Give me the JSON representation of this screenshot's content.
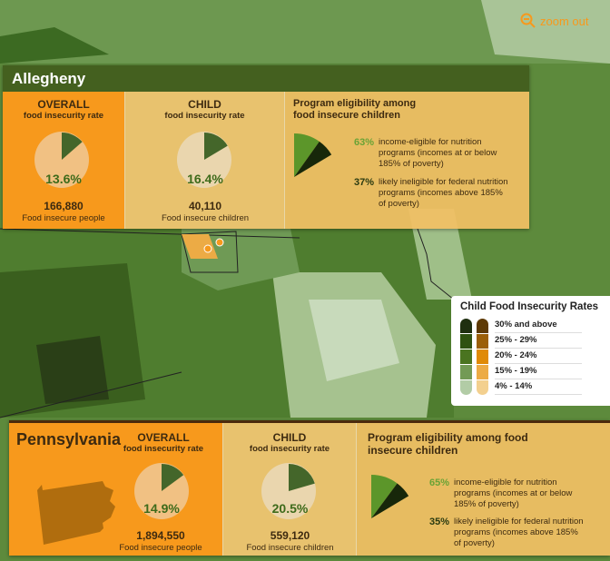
{
  "zoom_out_label": "zoom out",
  "county": {
    "name": "Allegheny",
    "overall": {
      "title": "OVERALL",
      "subtitle": "food insecurity rate",
      "rate_label": "13.6%",
      "rate": 13.6,
      "count": "166,880",
      "count_label": "Food insecure people"
    },
    "child": {
      "title": "CHILD",
      "subtitle": "food insecurity rate",
      "rate_label": "16.4%",
      "rate": 16.4,
      "count": "40,110",
      "count_label": "Food insecure children"
    },
    "program": {
      "title_line1": "Program eligibility among",
      "title_line2": "food insecure children",
      "eligible_pct": "63%",
      "eligible_value": 63,
      "eligible_line1": "income-eligible for nutrition",
      "eligible_line2": "programs (incomes at or below",
      "eligible_line3": "185% of poverty)",
      "ineligible_pct": "37%",
      "ineligible_value": 37,
      "ineligible_line1": "likely ineligible for federal nutrition",
      "ineligible_line2": "programs (incomes above 185%",
      "ineligible_line3": "of poverty)"
    }
  },
  "state": {
    "name": "Pennsylvania",
    "overall": {
      "title": "OVERALL",
      "subtitle": "food insecurity rate",
      "rate_label": "14.9%",
      "rate": 14.9,
      "count": "1,894,550",
      "count_label": "Food insecure people"
    },
    "child": {
      "title": "CHILD",
      "subtitle": "food insecurity rate",
      "rate_label": "20.5%",
      "rate": 20.5,
      "count": "559,120",
      "count_label": "Food insecure children"
    },
    "program": {
      "title_line1": "Program eligibility among food",
      "title_line2": "insecure children",
      "eligible_pct": "65%",
      "eligible_value": 65,
      "eligible_line1": "income-eligible for nutrition",
      "eligible_line2": "programs (incomes at or below",
      "eligible_line3": "185% of poverty)",
      "ineligible_pct": "35%",
      "ineligible_value": 35,
      "ineligible_line1": "likely ineligible for federal nutrition",
      "ineligible_line2": "programs (incomes above 185%",
      "ineligible_line3": "of poverty)"
    }
  },
  "legend": {
    "title": "Child Food Insecurity Rates",
    "items": [
      {
        "label": "30% and above",
        "green": "#1f2f10",
        "orange": "#5e3a05"
      },
      {
        "label": "25% - 29%",
        "green": "#2f5110",
        "orange": "#9b5f08"
      },
      {
        "label": "20% - 24%",
        "green": "#4a7420",
        "orange": "#e08a06"
      },
      {
        "label": "15% - 19%",
        "green": "#739a55",
        "orange": "#ecab45"
      },
      {
        "label": "4% - 14%",
        "green": "#b2cca6",
        "orange": "#f3d08f"
      }
    ]
  },
  "colors": {
    "orange": "#f7991c",
    "pie_green": "#44662a",
    "pie_bg_overall": "#f1c183",
    "pie_bg_child": "#ead6ae",
    "elig_green": "#5c962a",
    "inelig_dark": "#17270a"
  }
}
